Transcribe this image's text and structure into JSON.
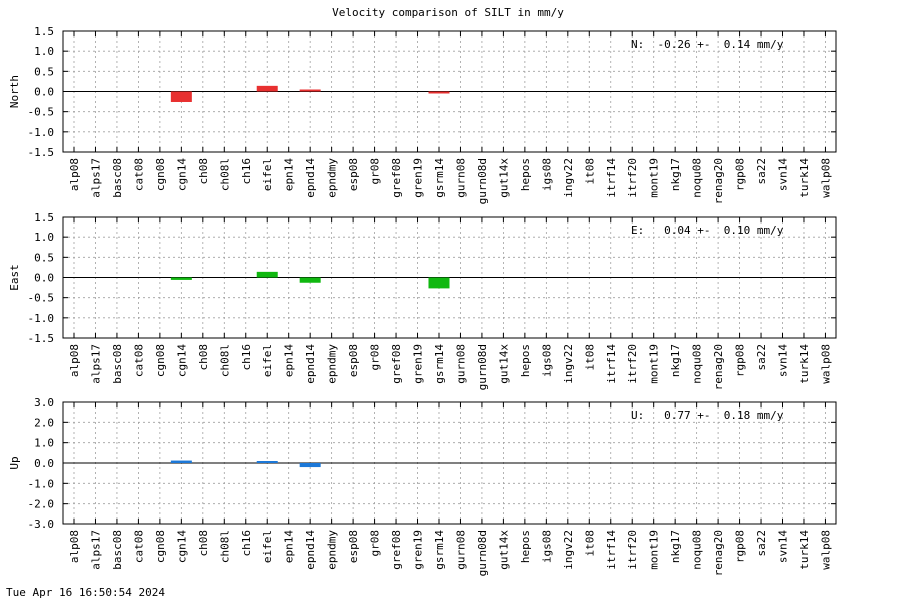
{
  "chart_data": [
    {
      "type": "bar",
      "title": "Velocity comparison of SILT in mm/y",
      "ylabel": "North",
      "ylim": [
        -1.5,
        1.5
      ],
      "yticks": [
        "1.5",
        "1.0",
        "0.5",
        "0.0",
        "-0.5",
        "-1.0",
        "-1.5"
      ],
      "ytick_values": [
        1.5,
        1.0,
        0.5,
        0.0,
        -0.5,
        -1.0,
        -1.5
      ],
      "annotation": "N:  -0.26 +-  0.14 mm/y",
      "color": "#e83030",
      "grid": true,
      "categories": [
        "alp08",
        "alps17",
        "basc08",
        "cat08",
        "cgn08",
        "cgn14",
        "ch08",
        "ch08l",
        "ch16",
        "eifel",
        "epn14",
        "epnd14",
        "epndmy",
        "esp08",
        "gr08",
        "gref08",
        "gren19",
        "gsrm14",
        "gurn08",
        "gurn08d",
        "gut14x",
        "hepos",
        "igs08",
        "ingv22",
        "it08",
        "itrf14",
        "itrf20",
        "mont19",
        "nkg17",
        "noqu08",
        "renag20",
        "rgp08",
        "sa22",
        "svn14",
        "turk14",
        "walp08"
      ],
      "values": [
        null,
        null,
        null,
        null,
        null,
        -0.26,
        null,
        null,
        null,
        0.14,
        null,
        0.03,
        null,
        null,
        null,
        null,
        null,
        -0.02,
        null,
        null,
        null,
        null,
        null,
        null,
        null,
        null,
        null,
        null,
        null,
        null,
        null,
        null,
        null,
        null,
        null,
        null
      ]
    },
    {
      "type": "bar",
      "ylabel": "East",
      "ylim": [
        -1.5,
        1.5
      ],
      "yticks": [
        "1.5",
        "1.0",
        "0.5",
        "0.0",
        "-0.5",
        "-1.0",
        "-1.5"
      ],
      "ytick_values": [
        1.5,
        1.0,
        0.5,
        0.0,
        -0.5,
        -1.0,
        -1.5
      ],
      "annotation": "E:   0.04 +-  0.10 mm/y",
      "color": "#10b810",
      "grid": true,
      "categories": [
        "alp08",
        "alps17",
        "basc08",
        "cat08",
        "cgn08",
        "cgn14",
        "ch08",
        "ch08l",
        "ch16",
        "eifel",
        "epn14",
        "epnd14",
        "epndmy",
        "esp08",
        "gr08",
        "gref08",
        "gren19",
        "gsrm14",
        "gurn08",
        "gurn08d",
        "gut14x",
        "hepos",
        "igs08",
        "ingv22",
        "it08",
        "itrf14",
        "itrf20",
        "mont19",
        "nkg17",
        "noqu08",
        "renag20",
        "rgp08",
        "sa22",
        "svn14",
        "turk14",
        "walp08"
      ],
      "values": [
        null,
        null,
        null,
        null,
        null,
        -0.06,
        null,
        null,
        null,
        0.14,
        null,
        -0.13,
        null,
        null,
        null,
        null,
        null,
        -0.27,
        null,
        null,
        null,
        null,
        null,
        null,
        null,
        null,
        null,
        null,
        null,
        null,
        null,
        null,
        null,
        null,
        null,
        null
      ]
    },
    {
      "type": "bar",
      "ylabel": "Up",
      "ylim": [
        -3.0,
        3.0
      ],
      "yticks": [
        "3.0",
        "2.0",
        "1.0",
        "0.0",
        "-1.0",
        "-2.0",
        "-3.0"
      ],
      "ytick_values": [
        3.0,
        2.0,
        1.0,
        0.0,
        -1.0,
        -2.0,
        -3.0
      ],
      "annotation": "U:   0.77 +-  0.18 mm/y",
      "color": "#1c78d8",
      "grid": true,
      "categories": [
        "alp08",
        "alps17",
        "basc08",
        "cat08",
        "cgn08",
        "cgn14",
        "ch08",
        "ch08l",
        "ch16",
        "eifel",
        "epn14",
        "epnd14",
        "epndmy",
        "esp08",
        "gr08",
        "gref08",
        "gren19",
        "gsrm14",
        "gurn08",
        "gurn08d",
        "gut14x",
        "hepos",
        "igs08",
        "ingv22",
        "it08",
        "itrf14",
        "itrf20",
        "mont19",
        "nkg17",
        "noqu08",
        "renag20",
        "rgp08",
        "sa22",
        "svn14",
        "turk14",
        "walp08"
      ],
      "values": [
        null,
        null,
        null,
        null,
        null,
        0.12,
        null,
        null,
        null,
        0.05,
        null,
        -0.2,
        null,
        null,
        null,
        null,
        null,
        null,
        null,
        null,
        null,
        null,
        null,
        null,
        null,
        null,
        null,
        null,
        null,
        null,
        null,
        null,
        null,
        null,
        null,
        null
      ]
    }
  ],
  "footer": {
    "timestamp": "Tue Apr 16 16:50:54 2024"
  }
}
